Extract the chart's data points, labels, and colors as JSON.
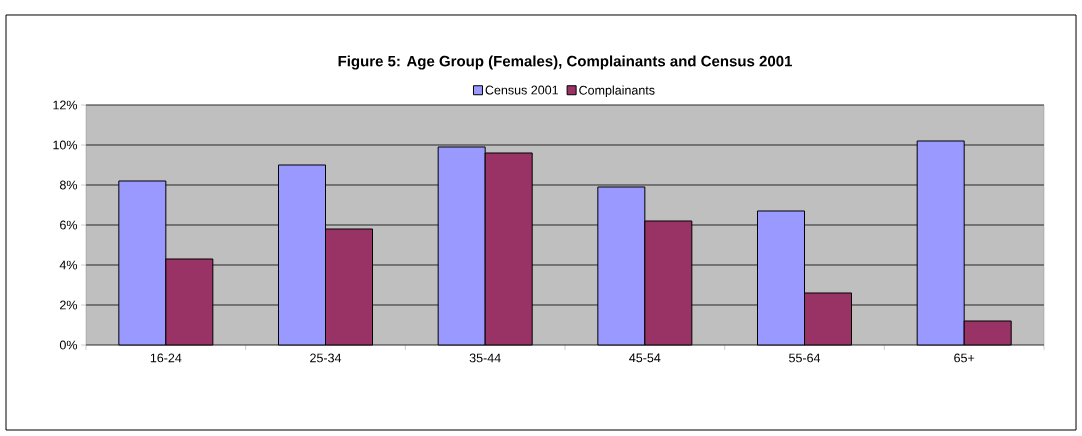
{
  "chart_data": {
    "type": "bar",
    "title": "Figure 5: Age Group (Females), Complainants and Census 2001",
    "categories": [
      "16-24",
      "25-34",
      "35-44",
      "45-54",
      "55-64",
      "65+"
    ],
    "series": [
      {
        "name": "Census 2001",
        "color": "#9999ff",
        "values": [
          8.2,
          9.0,
          9.9,
          7.9,
          6.7,
          10.2
        ]
      },
      {
        "name": "Complainants",
        "color": "#993366",
        "values": [
          4.3,
          5.8,
          9.6,
          6.2,
          2.6,
          1.2
        ]
      }
    ],
    "ylim": [
      0,
      12
    ],
    "yticks": [
      {
        "value": 0,
        "label": "0%"
      },
      {
        "value": 2,
        "label": "2%"
      },
      {
        "value": 4,
        "label": "4%"
      },
      {
        "value": 6,
        "label": "6%"
      },
      {
        "value": 8,
        "label": "8%"
      },
      {
        "value": 10,
        "label": "10%"
      },
      {
        "value": 12,
        "label": "12%"
      }
    ],
    "grid": "y",
    "legend": "top"
  }
}
